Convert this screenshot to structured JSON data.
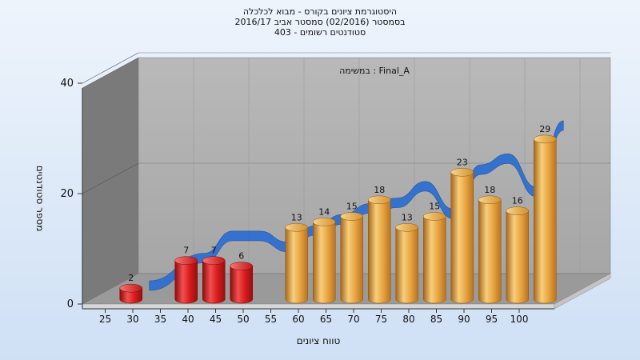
{
  "chart_data": {
    "type": "bar",
    "title_lines": [
      "היסטוגרמת ציונים בקורס - מבוא לכלכלה",
      "בסמסטר  (02/2016)  סמסטר אביב 2016/17",
      "403 - סטודנטים רשומים"
    ],
    "subtitle": "במשימה : Final_A",
    "xlabel": "טווח ציונים",
    "ylabel": "מספר סטודנטים",
    "x_ticks": [
      "25",
      "30",
      "35",
      "40",
      "45",
      "50",
      "55",
      "60",
      "65",
      "70",
      "75",
      "80",
      "85",
      "90",
      "95",
      "100"
    ],
    "y_ticks": [
      "0",
      "20",
      "40"
    ],
    "ylim": [
      0,
      40
    ],
    "bar_x": [
      27.5,
      37.5,
      42.5,
      47.5,
      57.5,
      62.5,
      67.5,
      72.5,
      77.5,
      82.5,
      87.5,
      92.5,
      97.5,
      102.5
    ],
    "values": [
      2,
      7,
      7,
      6,
      13,
      14,
      15,
      18,
      13,
      15,
      23,
      18,
      16,
      29
    ],
    "bar_colors": [
      "red",
      "red",
      "red",
      "red",
      "gold",
      "gold",
      "gold",
      "gold",
      "gold",
      "gold",
      "gold",
      "gold",
      "gold",
      "gold"
    ],
    "trend_line": {
      "x": [
        27.5,
        37.5,
        42.5,
        47.5,
        52.5,
        57.5,
        62.5,
        67.5,
        72.5,
        77.5,
        82.5,
        87.5,
        92.5,
        97.5,
        102.5
      ],
      "y": [
        0,
        5,
        9,
        9,
        7,
        10,
        12,
        14,
        15,
        18,
        13,
        21,
        23,
        17,
        29
      ]
    },
    "grid": true,
    "colors": {
      "fail": "#d81c1c",
      "pass": "#e9a542",
      "trend": "#2f6fd0",
      "wall": "#a9a9a9",
      "floor": "#9a9a9a"
    }
  }
}
